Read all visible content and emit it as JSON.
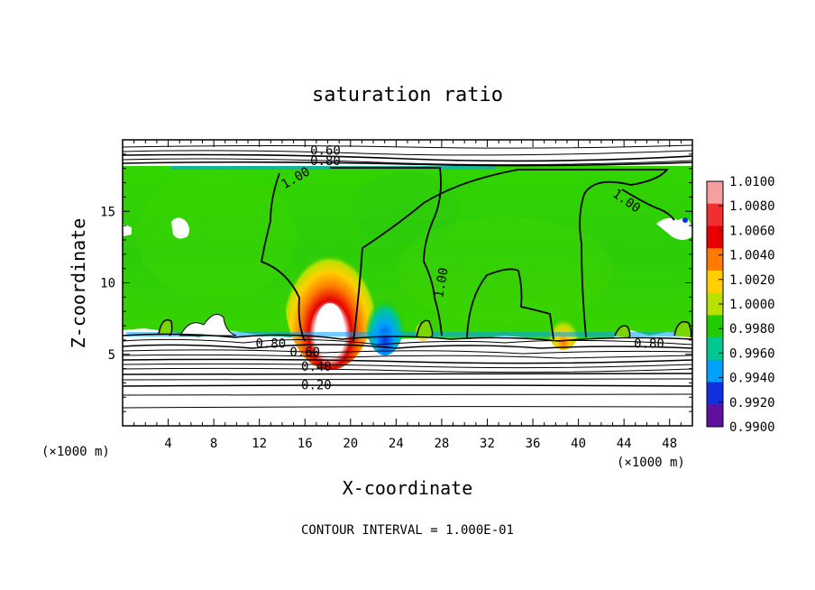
{
  "chart_data": {
    "type": "heatmap",
    "title": "saturation ratio",
    "xlabel": "X-coordinate",
    "ylabel": "Z-coordinate",
    "x_unit_left": "(×1000 m)",
    "x_unit_right": "(×1000 m)",
    "xlim": [
      0,
      50
    ],
    "ylim": [
      0,
      20
    ],
    "x_ticks": [
      4,
      8,
      12,
      16,
      20,
      24,
      28,
      32,
      36,
      40,
      44,
      48
    ],
    "y_ticks": [
      5,
      10,
      15
    ],
    "footer": "CONTOUR INTERVAL = 1.000E-01",
    "colorbar": {
      "labels": [
        "1.0100",
        "1.0080",
        "1.0060",
        "1.0040",
        "1.0020",
        "1.0000",
        "0.9980",
        "0.9960",
        "0.9940",
        "0.9920",
        "0.9900"
      ],
      "colors": [
        "#f4a0a0",
        "#f03030",
        "#e60000",
        "#ff7a00",
        "#ffd000",
        "#b8e000",
        "#22cc00",
        "#00c890",
        "#00a0ff",
        "#1030e0",
        "#6010a0"
      ]
    },
    "contour_labels": [
      {
        "text": "0.60",
        "x": 17.8,
        "y": 19.2
      },
      {
        "text": "0.80",
        "x": 17.8,
        "y": 18.5
      },
      {
        "text": "1.00",
        "x": 15.2,
        "y": 17.3,
        "rot": -30
      },
      {
        "text": "1.00",
        "x": 28.0,
        "y": 10.0,
        "rot": -80
      },
      {
        "text": "1.00",
        "x": 44.2,
        "y": 15.7,
        "rot": 35
      },
      {
        "text": "0.80",
        "x": 13.0,
        "y": 5.7
      },
      {
        "text": "0.60",
        "x": 16.0,
        "y": 5.1
      },
      {
        "text": "0.40",
        "x": 17.0,
        "y": 4.1
      },
      {
        "text": "0.20",
        "x": 17.0,
        "y": 2.8
      },
      {
        "text": "0.80",
        "x": 46.2,
        "y": 5.7
      }
    ]
  }
}
